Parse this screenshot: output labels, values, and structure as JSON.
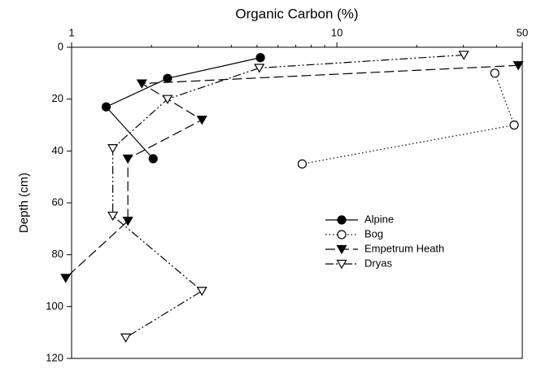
{
  "chart_data": {
    "type": "line",
    "title": "Organic Carbon (%)",
    "y_label": "Depth (cm)",
    "x_log": true,
    "y_inverted": true,
    "xlim": [
      1,
      50
    ],
    "xticks": [
      1,
      10,
      50
    ],
    "xminorticks": [
      2,
      3,
      4,
      5,
      6,
      7,
      8,
      9,
      20,
      30,
      40
    ],
    "ylim": [
      0,
      120
    ],
    "yticks": [
      0,
      20,
      40,
      60,
      80,
      100,
      120
    ],
    "legend": "center-right",
    "series": [
      {
        "name": "Alpine",
        "color": "#000000",
        "marker": "circle-filled",
        "dash": "solid",
        "x": [
          5.15,
          2.3,
          1.35,
          2.03
        ],
        "values": [
          4,
          12,
          23,
          43
        ]
      },
      {
        "name": "Bog",
        "color": "#000000",
        "marker": "circle-open",
        "dash": "dotted",
        "x": [
          39.4,
          46.6,
          7.4
        ],
        "values": [
          10,
          30,
          45
        ]
      },
      {
        "name": "Empetrum Heath",
        "color": "#000000",
        "marker": "triangle-filled",
        "dash": "dashed",
        "x": [
          48.3,
          1.84,
          3.1,
          1.63,
          1.63,
          0.95
        ],
        "values": [
          7,
          14,
          28,
          43,
          67,
          89
        ]
      },
      {
        "name": "Dryas",
        "color": "#000000",
        "marker": "triangle-open",
        "dash": "dashdotdot",
        "x": [
          30.1,
          5.1,
          2.3,
          1.43,
          1.43,
          3.1,
          1.6
        ],
        "values": [
          3,
          8,
          20,
          39,
          65,
          94,
          112
        ]
      }
    ]
  }
}
